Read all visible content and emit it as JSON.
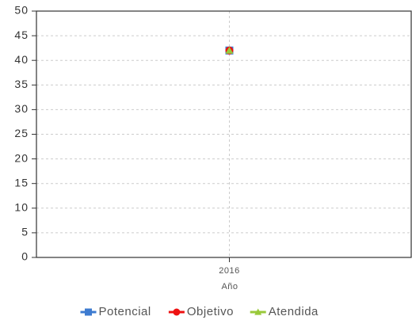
{
  "chart_data": {
    "type": "line",
    "x_label": "Año",
    "categories": [
      "2016"
    ],
    "series": [
      {
        "name": "Potencial",
        "color": "#3d7bd0",
        "marker": "square",
        "values": [
          42
        ]
      },
      {
        "name": "Objetivo",
        "color": "#ee1111",
        "marker": "circle",
        "values": [
          42
        ]
      },
      {
        "name": "Atendida",
        "color": "#99c93a",
        "marker": "triangle",
        "values": [
          42
        ]
      }
    ],
    "ylim": [
      0,
      50
    ],
    "yticks": [
      0,
      5,
      10,
      15,
      20,
      25,
      30,
      35,
      40,
      45,
      50
    ],
    "grid": true,
    "legend": "bottom"
  }
}
